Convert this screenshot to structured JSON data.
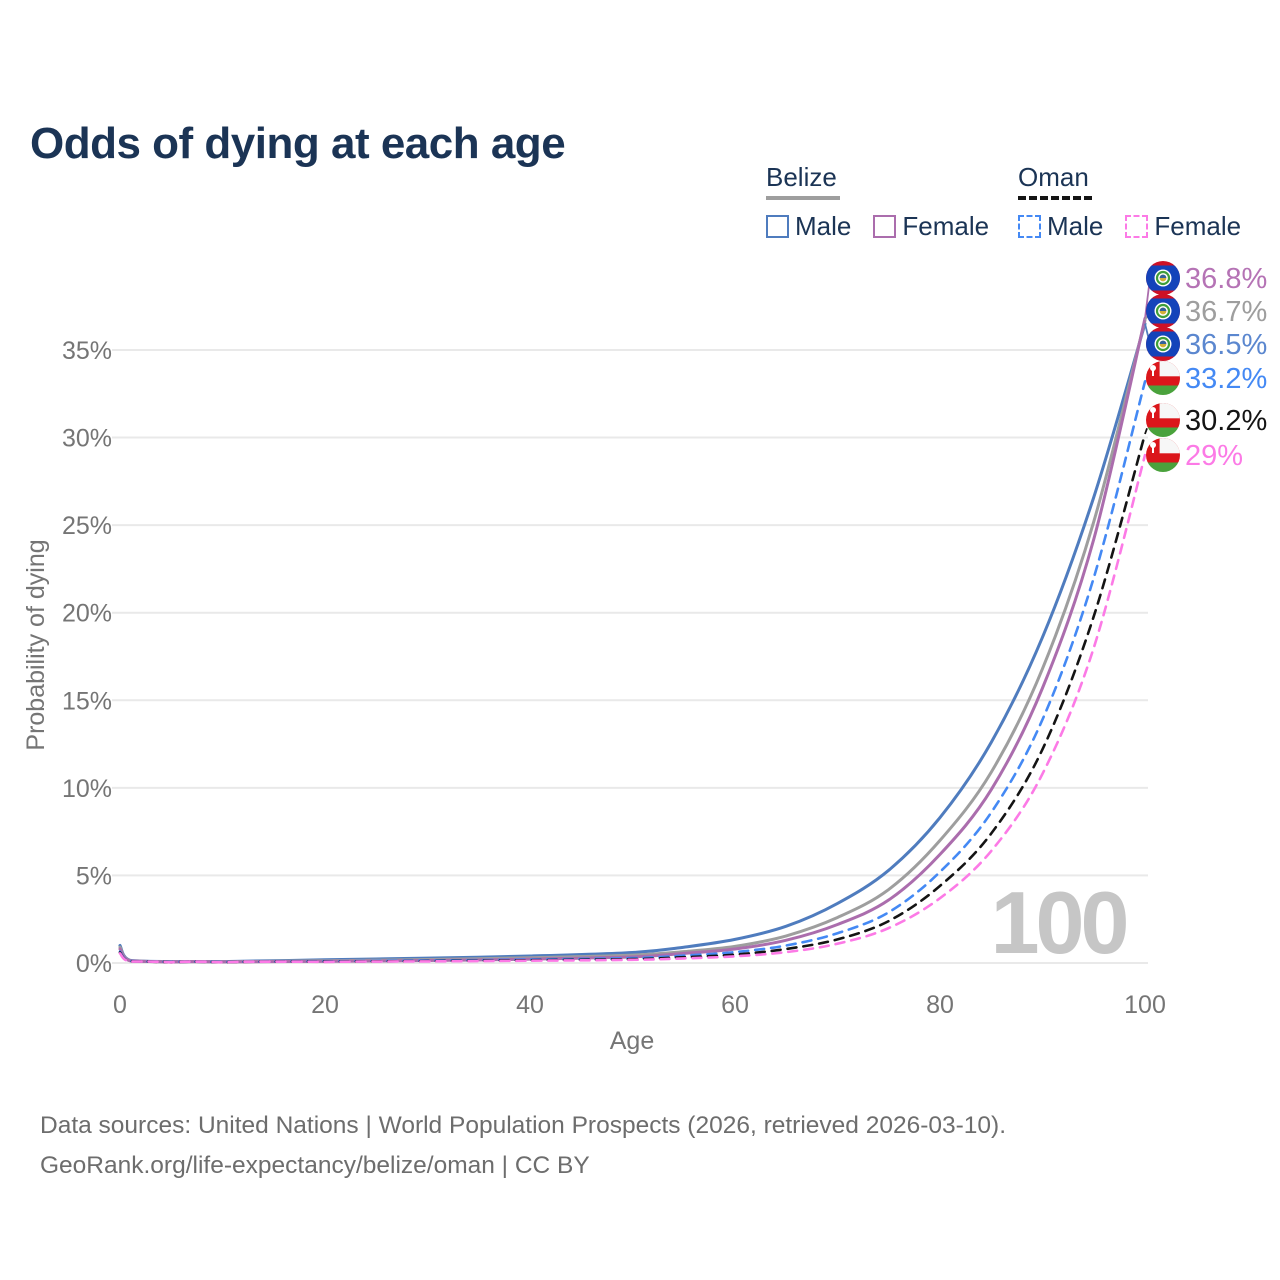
{
  "title": "Odds of dying at each age",
  "watermark": "100",
  "colors": {
    "title_navy": "#1b3455",
    "axis_gray": "#757575",
    "gridline": "#e9e9e9",
    "watermark_gray": "#c6c6c6",
    "footer_gray": "#6d6d6d",
    "belize_male": "#4f7cbe",
    "belize_total": "#9e9e9e",
    "belize_female": "#ab6dad",
    "oman_male": "#4489f4",
    "oman_total": "#141414",
    "oman_female": "#fc7ae6"
  },
  "legend": {
    "groups": [
      {
        "country": "Belize",
        "line_style": "solid",
        "line_color": "#9e9e9e",
        "items": [
          {
            "label": "Male",
            "color": "#4f7cbe",
            "dashed": false
          },
          {
            "label": "Female",
            "color": "#ab6dad",
            "dashed": false
          }
        ]
      },
      {
        "country": "Oman",
        "line_style": "dashed",
        "line_color": "#141414",
        "items": [
          {
            "label": "Male",
            "color": "#4489f4",
            "dashed": true
          },
          {
            "label": "Female",
            "color": "#fc7ae6",
            "dashed": true
          }
        ]
      }
    ]
  },
  "chart_data": {
    "type": "line",
    "title": "Odds of dying at each age",
    "xlabel": "Age",
    "ylabel": "Probability of dying",
    "x_ticks": [
      0,
      20,
      40,
      60,
      80,
      100
    ],
    "y_ticks_percent": [
      0,
      5,
      10,
      15,
      20,
      25,
      30,
      35
    ],
    "xlim": [
      0,
      100
    ],
    "ylim_percent": [
      0,
      38.5
    ],
    "grid": "horizontal-only",
    "legend_position": "top-right",
    "ages": [
      0,
      1,
      5,
      10,
      20,
      30,
      40,
      50,
      55,
      60,
      65,
      70,
      75,
      80,
      85,
      90,
      95,
      100
    ],
    "series": [
      {
        "id": "belize-male",
        "country": "Belize",
        "sex": "Male",
        "style": "solid",
        "color": "#4f7cbe",
        "label_color": "#5b87cf",
        "flag": "belize",
        "end_label": "36.5%",
        "values": [
          1.0,
          0.15,
          0.08,
          0.08,
          0.18,
          0.28,
          0.4,
          0.6,
          0.9,
          1.35,
          2.1,
          3.4,
          5.3,
          8.3,
          12.6,
          18.6,
          26.6,
          36.5
        ]
      },
      {
        "id": "belize-total",
        "country": "Belize",
        "sex": "Both",
        "style": "solid",
        "color": "#9e9e9e",
        "label_color": "#9e9e9e",
        "flag": "belize",
        "end_label": "36.7%",
        "values": [
          0.9,
          0.13,
          0.07,
          0.07,
          0.13,
          0.2,
          0.3,
          0.45,
          0.65,
          0.95,
          1.55,
          2.6,
          4.2,
          7.0,
          10.9,
          16.8,
          25.2,
          36.7
        ]
      },
      {
        "id": "belize-female",
        "country": "Belize",
        "sex": "Female",
        "style": "solid",
        "color": "#ab6dad",
        "label_color": "#b573b5",
        "flag": "belize",
        "end_label": "36.8%",
        "values": [
          0.8,
          0.12,
          0.06,
          0.06,
          0.09,
          0.14,
          0.22,
          0.35,
          0.55,
          0.8,
          1.3,
          2.2,
          3.6,
          6.2,
          9.9,
          15.7,
          24.2,
          36.8
        ]
      },
      {
        "id": "oman-male",
        "country": "Oman",
        "sex": "Male",
        "style": "dashed",
        "color": "#4489f4",
        "label_color": "#4489f4",
        "flag": "oman",
        "end_label": "33.2%",
        "values": [
          0.65,
          0.1,
          0.05,
          0.05,
          0.1,
          0.14,
          0.2,
          0.28,
          0.42,
          0.62,
          1.0,
          1.7,
          2.9,
          5.2,
          8.6,
          13.9,
          22.0,
          33.2
        ]
      },
      {
        "id": "oman-total",
        "country": "Oman",
        "sex": "Both",
        "style": "dashed",
        "color": "#141414",
        "label_color": "#141414",
        "flag": "oman",
        "end_label": "30.2%",
        "values": [
          0.6,
          0.09,
          0.04,
          0.04,
          0.08,
          0.11,
          0.16,
          0.22,
          0.33,
          0.48,
          0.8,
          1.35,
          2.4,
          4.4,
          7.4,
          12.2,
          19.8,
          30.2
        ]
      },
      {
        "id": "oman-female",
        "country": "Oman",
        "sex": "Female",
        "style": "dashed",
        "color": "#fc7ae6",
        "label_color": "#fc7ae6",
        "flag": "oman",
        "end_label": "29%",
        "values": [
          0.55,
          0.08,
          0.04,
          0.04,
          0.06,
          0.09,
          0.13,
          0.18,
          0.26,
          0.38,
          0.62,
          1.1,
          2.0,
          3.7,
          6.4,
          10.8,
          18.0,
          29.0
        ]
      }
    ]
  },
  "footer": {
    "line1": "Data sources: United Nations | World Population Prospects (2026, retrieved 2026-03-10).",
    "line2": "GeoRank.org/life-expectancy/belize/oman | CC BY"
  }
}
